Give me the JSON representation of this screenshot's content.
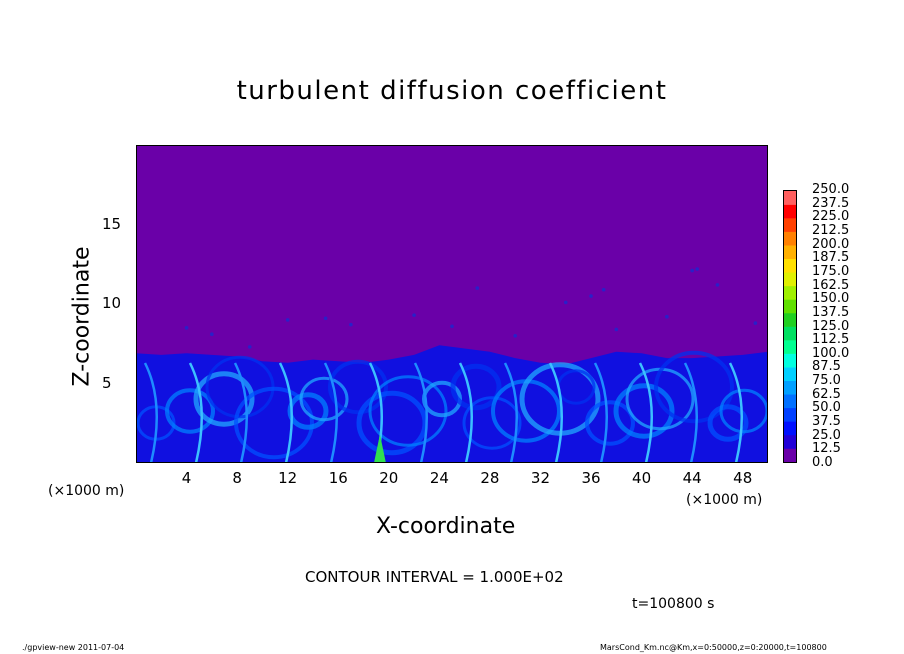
{
  "chart_data": {
    "type": "heatmap",
    "title": "turbulent diffusion coefficient",
    "xlabel": "X-coordinate",
    "ylabel": "Z-coordinate",
    "x_unit_label": "(×1000 m)",
    "x_ticks": [
      4,
      8,
      12,
      16,
      20,
      24,
      28,
      32,
      36,
      40,
      44,
      48
    ],
    "x_tick_labels": [
      "4",
      "8",
      "12",
      "16",
      "20",
      "24",
      "28",
      "32",
      "36",
      "40",
      "44",
      "48"
    ],
    "y_ticks": [
      5,
      10,
      15
    ],
    "y_tick_labels": [
      "5",
      "10",
      "15"
    ],
    "xlim": [
      0,
      50
    ],
    "ylim": [
      0,
      20
    ],
    "boundary_layer_top_z": [
      6.9,
      6.8,
      6.9,
      6.8,
      6.7,
      6.4,
      6.3,
      6.5,
      6.4,
      6.3,
      6.5,
      6.8,
      7.4,
      7.2,
      7.0,
      6.6,
      6.3,
      6.2,
      6.6,
      7.0,
      6.9,
      6.6,
      6.6,
      6.7,
      6.8,
      7.0
    ],
    "peak_value_location": {
      "x": 19.3,
      "z_top": 1.8,
      "value": 100.0
    },
    "colorbar": {
      "levels": [
        "0.0",
        "12.5",
        "25.0",
        "37.5",
        "50.0",
        "62.5",
        "75.0",
        "87.5",
        "100.0",
        "112.5",
        "125.0",
        "137.5",
        "150.0",
        "162.5",
        "175.0",
        "187.5",
        "200.0",
        "212.5",
        "225.0",
        "237.5",
        "250.0"
      ],
      "colors": [
        "#6a00a8",
        "#2200d8",
        "#0010ff",
        "#0040ff",
        "#0070ff",
        "#00a0ff",
        "#00d0ff",
        "#00ffe0",
        "#00ff90",
        "#00e060",
        "#20d020",
        "#60e000",
        "#a0f000",
        "#e0f000",
        "#ffe000",
        "#ffb000",
        "#ff8000",
        "#ff4000",
        "#ff0000",
        "#ff6060"
      ]
    },
    "contour_interval": "CONTOUR INTERVAL = 1.000E+02",
    "time_label": "t=100800 s"
  },
  "footer": {
    "left": "./gpview-new   2011-07-04",
    "right": "MarsCond_Km.nc@Km,x=0:50000,z=0:20000,t=100800"
  }
}
